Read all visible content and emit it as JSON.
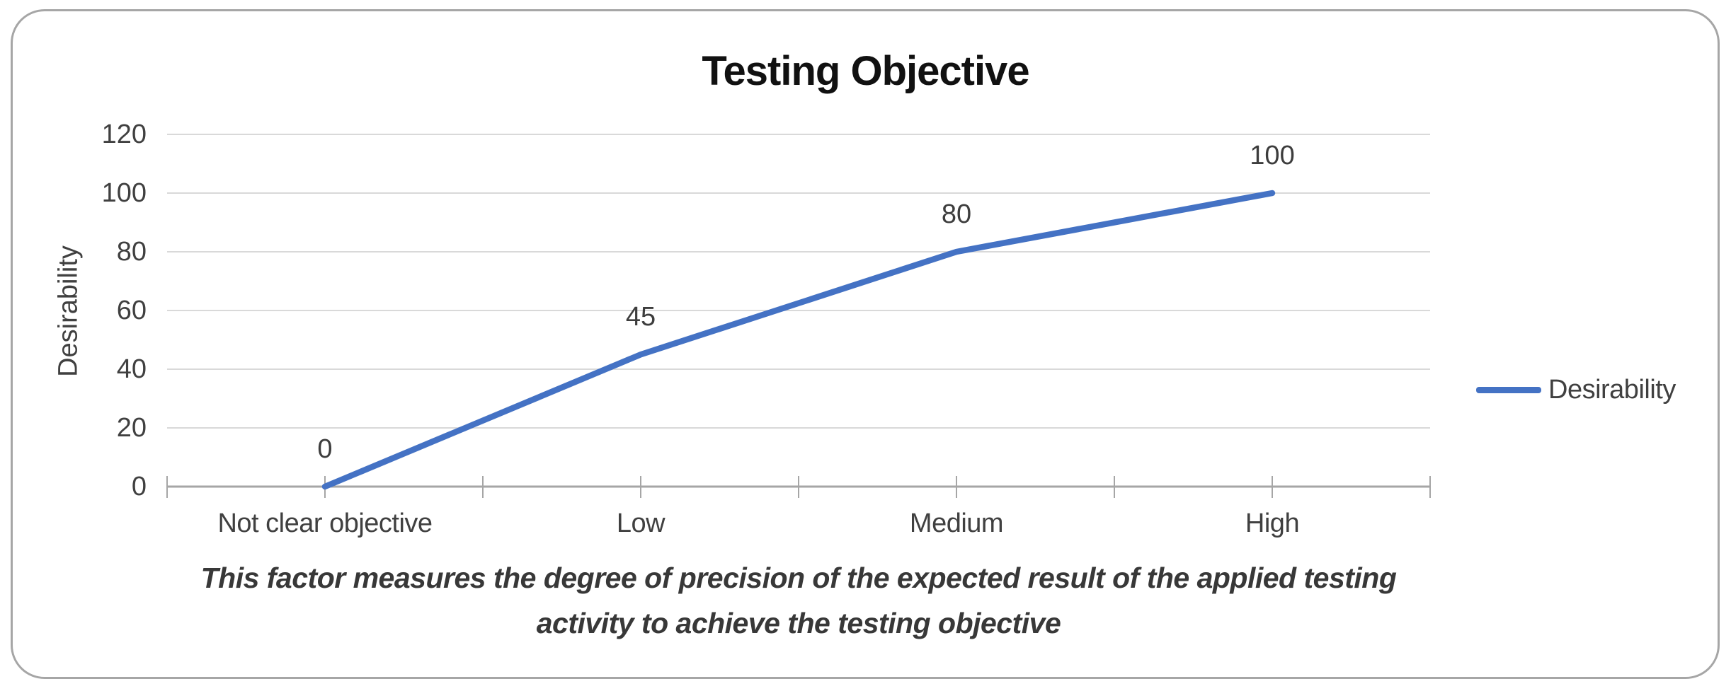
{
  "window": {
    "background": "#ffffff",
    "frame_border_color": "#a6a6a6"
  },
  "chart_data": {
    "type": "line",
    "title": "Testing Objective",
    "categories": [
      "Not clear objective",
      "Low",
      "Medium",
      "High"
    ],
    "series": [
      {
        "name": "Desirability",
        "values": [
          0,
          45,
          80,
          100
        ]
      }
    ],
    "xlabel": "",
    "ylabel": "Desirability",
    "ylim": [
      0,
      120
    ],
    "yticks": [
      120,
      100,
      80,
      60,
      40,
      20,
      0
    ],
    "grid": "horizontal",
    "data_labels_shown": true,
    "legend_position": "right",
    "line_color": "#4472c4",
    "gridline_color": "#d9d9d9",
    "axis_color": "#a6a6a6",
    "caption_lines": [
      "This factor measures the degree of precision of the expected result of the applied testing",
      "activity to achieve the testing objective"
    ]
  }
}
